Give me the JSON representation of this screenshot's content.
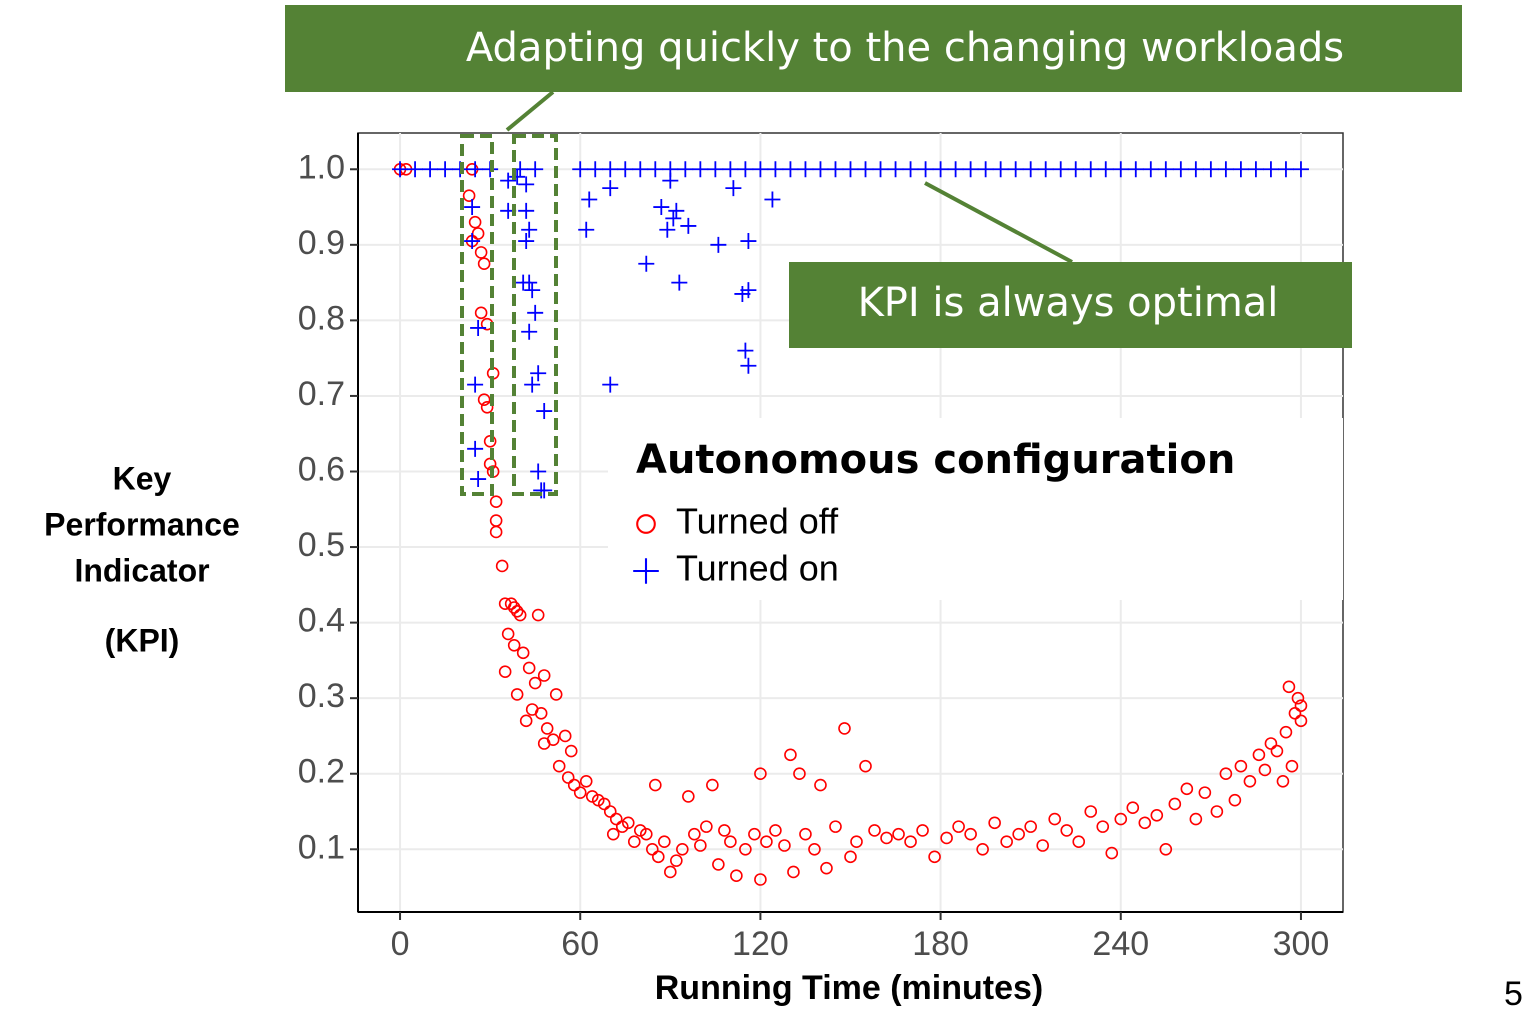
{
  "chart_data": {
    "type": "scatter",
    "xlabel": "Running Time (minutes)",
    "ylabel": [
      "Key",
      "Performance",
      "Indicator",
      "(KPI)"
    ],
    "legend_title": "Autonomous configuration",
    "legend": "right",
    "annotations": [
      "Adapting quickly to the changing workloads",
      "KPI is always optimal"
    ],
    "xlim": [
      -14,
      314
    ],
    "ylim": [
      0.017,
      1.048
    ],
    "xticks": [
      0,
      60,
      120,
      180,
      240,
      300
    ],
    "yticks": [
      0.1,
      0.2,
      0.3,
      0.4,
      0.5,
      0.6,
      0.7,
      0.8,
      0.9,
      {
        "value": 1,
        "label": "1.0"
      }
    ],
    "grid": true,
    "series": [
      {
        "name": "Turned off",
        "color": "#ff0000",
        "marker": "circle",
        "x": [
          0,
          2,
          24,
          23,
          25,
          26,
          24,
          27,
          28,
          27,
          29,
          31,
          28,
          29,
          30,
          30,
          31,
          32,
          32,
          32,
          34,
          35,
          37,
          38,
          36,
          39,
          40,
          46,
          38,
          41,
          35,
          43,
          39,
          45,
          48,
          44,
          47,
          42,
          52,
          49,
          51,
          55,
          48,
          53,
          57,
          56,
          58,
          60,
          62,
          64,
          66,
          68,
          70,
          72,
          71,
          74,
          76,
          78,
          80,
          82,
          84,
          85,
          86,
          88,
          90,
          92,
          94,
          96,
          98,
          100,
          102,
          104,
          106,
          108,
          110,
          112,
          115,
          118,
          120,
          120,
          122,
          125,
          128,
          130,
          131,
          133,
          135,
          138,
          140,
          142,
          145,
          148,
          150,
          152,
          155,
          158,
          162,
          166,
          170,
          174,
          178,
          182,
          186,
          190,
          194,
          198,
          202,
          206,
          210,
          214,
          218,
          222,
          226,
          230,
          234,
          237,
          240,
          244,
          248,
          252,
          255,
          258,
          262,
          265,
          268,
          272,
          275,
          278,
          280,
          283,
          286,
          288,
          290,
          292,
          294,
          295,
          296,
          297,
          298,
          299,
          300,
          300
        ],
        "values": [
          1,
          1,
          1,
          0.965,
          0.93,
          0.915,
          0.905,
          0.89,
          0.875,
          0.81,
          0.795,
          0.73,
          0.695,
          0.685,
          0.64,
          0.61,
          0.6,
          0.56,
          0.535,
          0.52,
          0.475,
          0.425,
          0.425,
          0.42,
          0.385,
          0.415,
          0.41,
          0.41,
          0.37,
          0.36,
          0.335,
          0.34,
          0.305,
          0.32,
          0.33,
          0.285,
          0.28,
          0.27,
          0.305,
          0.26,
          0.245,
          0.25,
          0.24,
          0.21,
          0.23,
          0.195,
          0.185,
          0.175,
          0.19,
          0.17,
          0.165,
          0.16,
          0.15,
          0.14,
          0.12,
          0.13,
          0.135,
          0.11,
          0.125,
          0.12,
          0.1,
          0.185,
          0.09,
          0.11,
          0.07,
          0.085,
          0.1,
          0.17,
          0.12,
          0.105,
          0.13,
          0.185,
          0.08,
          0.125,
          0.11,
          0.065,
          0.1,
          0.12,
          0.2,
          0.06,
          0.11,
          0.125,
          0.105,
          0.225,
          0.07,
          0.2,
          0.12,
          0.1,
          0.185,
          0.075,
          0.13,
          0.26,
          0.09,
          0.11,
          0.21,
          0.125,
          0.115,
          0.12,
          0.11,
          0.125,
          0.09,
          0.115,
          0.13,
          0.12,
          0.1,
          0.135,
          0.11,
          0.12,
          0.13,
          0.105,
          0.14,
          0.125,
          0.11,
          0.15,
          0.13,
          0.095,
          0.14,
          0.155,
          0.135,
          0.145,
          0.1,
          0.16,
          0.18,
          0.14,
          0.175,
          0.15,
          0.2,
          0.165,
          0.21,
          0.19,
          0.225,
          0.205,
          0.24,
          0.23,
          0.19,
          0.255,
          0.315,
          0.21,
          0.28,
          0.3,
          0.29,
          0.27
        ]
      },
      {
        "name": "Turned on",
        "color": "#0000ff",
        "marker": "plus",
        "x": [
          0,
          5,
          10,
          15,
          20,
          25,
          30,
          40,
          45,
          60,
          65,
          70,
          75,
          80,
          85,
          90,
          95,
          100,
          105,
          110,
          115,
          120,
          125,
          130,
          135,
          140,
          145,
          150,
          155,
          160,
          165,
          170,
          175,
          180,
          185,
          190,
          195,
          200,
          205,
          210,
          215,
          220,
          225,
          230,
          235,
          240,
          245,
          250,
          255,
          260,
          265,
          270,
          275,
          280,
          285,
          290,
          295,
          300,
          24,
          24,
          26,
          25,
          25,
          26,
          36,
          36,
          39,
          42,
          42,
          43,
          42,
          41,
          43,
          44,
          45,
          43,
          46,
          44,
          48,
          46,
          47,
          48,
          63,
          62,
          70,
          70,
          82,
          87,
          89,
          91,
          92,
          96,
          93,
          90,
          106,
          111,
          114,
          116,
          116,
          115,
          116,
          124
        ],
        "values": [
          1,
          1,
          1,
          1,
          1,
          1,
          1,
          1,
          1,
          1,
          1,
          1,
          1,
          1,
          1,
          1,
          1,
          1,
          1,
          1,
          1,
          1,
          1,
          1,
          1,
          1,
          1,
          1,
          1,
          1,
          1,
          1,
          1,
          1,
          1,
          1,
          1,
          1,
          1,
          1,
          1,
          1,
          1,
          1,
          1,
          1,
          1,
          1,
          1,
          1,
          1,
          1,
          1,
          1,
          1,
          1,
          1,
          1,
          0.95,
          0.905,
          0.79,
          0.715,
          0.63,
          0.59,
          0.985,
          0.945,
          0.99,
          0.98,
          0.945,
          0.92,
          0.905,
          0.85,
          0.85,
          0.84,
          0.81,
          0.785,
          0.73,
          0.715,
          0.68,
          0.6,
          0.575,
          0.575,
          0.96,
          0.92,
          0.975,
          0.715,
          0.875,
          0.95,
          0.92,
          0.935,
          0.945,
          0.925,
          0.85,
          0.985,
          0.9,
          0.975,
          0.835,
          0.84,
          0.905,
          0.76,
          0.74,
          0.96
        ]
      }
    ]
  },
  "slide_number": 5
}
